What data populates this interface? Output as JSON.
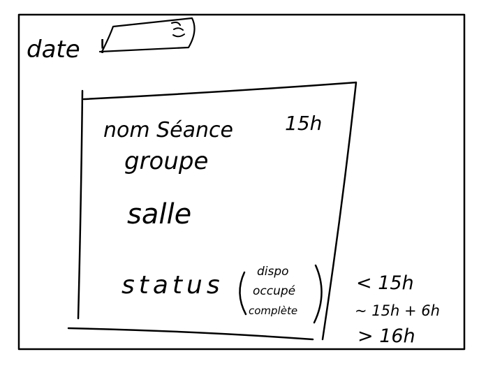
{
  "date_field": {
    "label": "date",
    "icon": "calendar-icon"
  },
  "session_card": {
    "name_label": "nom Séance",
    "time_label": "15h",
    "group_label": "groupe",
    "room_label": "salle",
    "status_label": "status",
    "status_options": [
      "dispo",
      "occupé",
      "complète"
    ]
  },
  "time_legend": [
    "< 15h",
    "~ 15h + 6h",
    "> 16h"
  ]
}
